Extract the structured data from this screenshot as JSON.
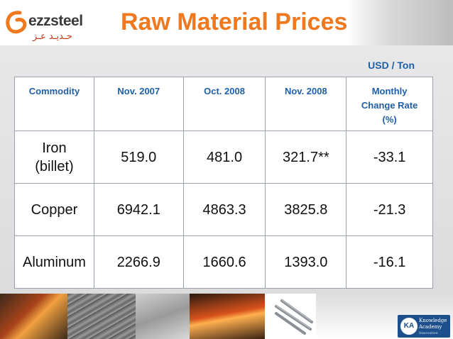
{
  "brand": {
    "logo_en": "ezzsteel",
    "logo_ar": "حـديـد عـز",
    "accent_color": "#f0781e",
    "header_text_color": "#1f5fa8"
  },
  "slide": {
    "title": "Raw Material Prices",
    "unit_label": "USD / Ton"
  },
  "table": {
    "headers": {
      "commodity": "Commodity",
      "nov2007": "Nov. 2007",
      "oct2008": "Oct. 2008",
      "nov2008": "Nov. 2008",
      "rate_line1": "Monthly",
      "rate_line2": "Change Rate",
      "rate_line3": "(%)"
    },
    "rows": [
      {
        "commodity_line1": "Iron",
        "commodity_line2": "(billet)",
        "nov2007": "519.0",
        "oct2008": "481.0",
        "nov2008": "321.7**",
        "rate": "-33.1"
      },
      {
        "commodity": "Copper",
        "nov2007": "6942.1",
        "oct2008": "4863.3",
        "nov2008": "3825.8",
        "rate": "-21.3"
      },
      {
        "commodity": "Aluminum",
        "nov2007": "2266.9",
        "oct2008": "1660.6",
        "nov2008": "1393.0",
        "rate": "-16.1"
      }
    ]
  },
  "footer_badge": {
    "initials": "KA",
    "name": "Knowledge Academy",
    "tagline": "Innovative Learning Solutions"
  }
}
